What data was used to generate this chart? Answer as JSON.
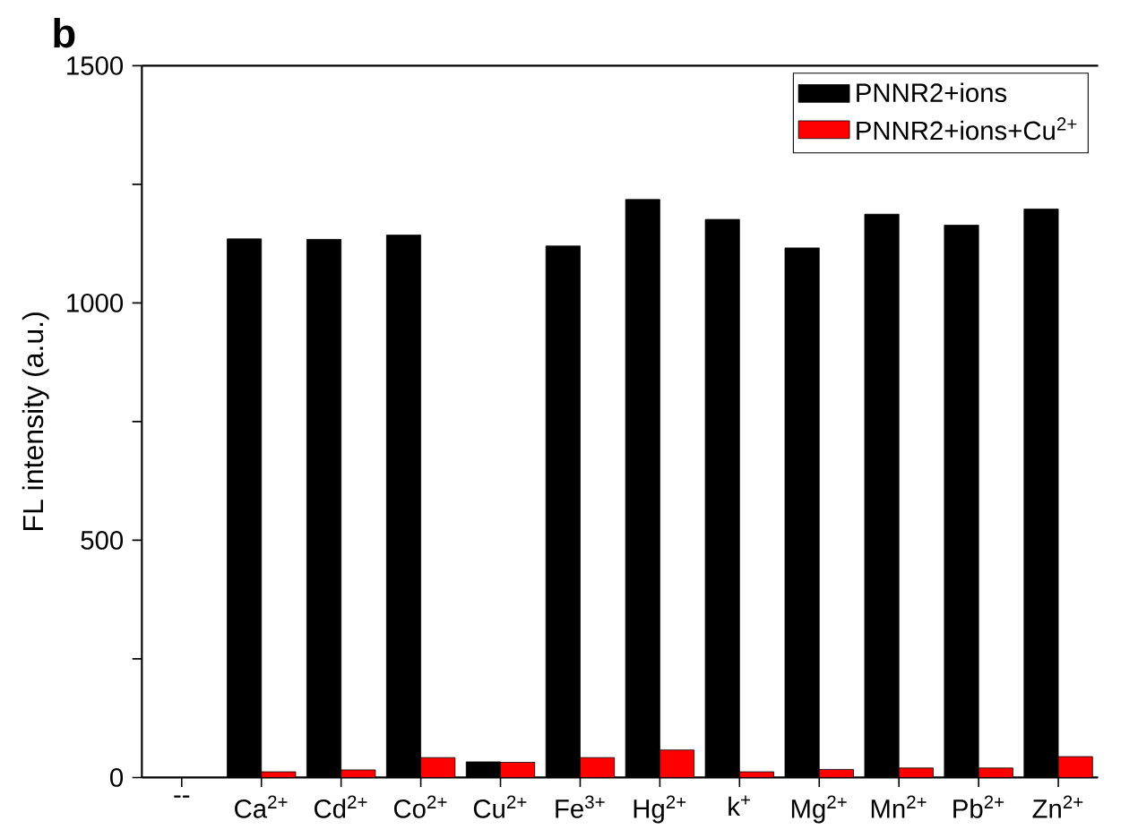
{
  "chart_data": {
    "type": "bar",
    "annotations": [
      "**b**"
    ],
    "ylabel": "FL intensity (a.u.)",
    "categories": [
      "--",
      "Ca$^{2+}$",
      "Cd$^{2+}$",
      "Co$^{2+}$",
      "Cu$^{2+}$",
      "Fe$^{3+}$",
      "Hg$^{2+}$",
      "k$^{+}$",
      "Mg$^{2+}$",
      "Mn$^{2+}$",
      "Pb$^{2+}$",
      "Zn$^{2+}$"
    ],
    "series": [
      {
        "name": "PNNR2+ions",
        "color": "#000000",
        "values": [
          null,
          1135,
          1134,
          1143,
          33,
          1120,
          1218,
          1176,
          1116,
          1187,
          1164,
          1198
        ]
      },
      {
        "name": "PNNR2+ions+Cu$^{2+}$",
        "color": "#ff0000",
        "values": [
          null,
          12,
          16,
          42,
          32,
          42,
          58,
          12,
          17,
          20,
          20,
          44
        ]
      }
    ],
    "ylim": [
      0,
      1500
    ],
    "yticks": [
      0,
      {
        "value": 250,
        "label": null
      },
      500,
      {
        "value": 750,
        "label": null
      },
      1000,
      {
        "value": 1250,
        "label": null
      },
      1500
    ],
    "legend": "top right",
    "grid": false
  }
}
